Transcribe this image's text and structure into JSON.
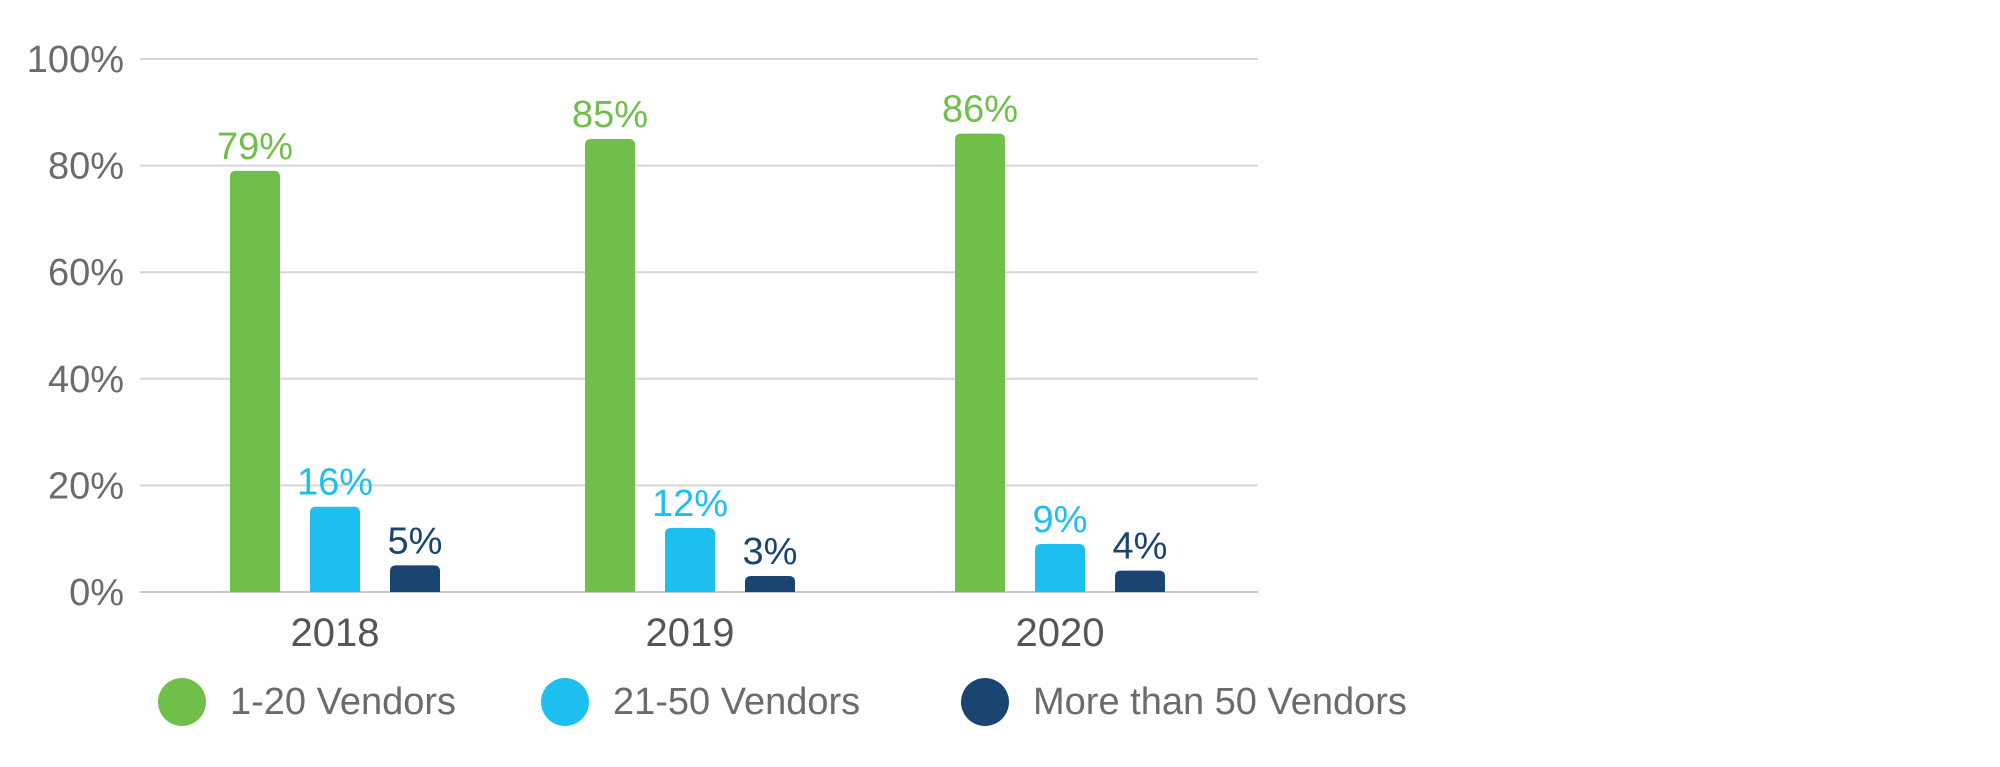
{
  "chart_data": {
    "type": "bar",
    "title": "",
    "xlabel": "",
    "ylabel": "",
    "ylim": [
      0,
      100
    ],
    "yticks": [
      "0%",
      "20%",
      "40%",
      "60%",
      "80%",
      "100%"
    ],
    "grid": true,
    "legend_position": "bottom",
    "categories": [
      "2018",
      "2019",
      "2020"
    ],
    "series": [
      {
        "name": "1-20 Vendors",
        "color": "#70bf4a",
        "values": [
          79,
          85,
          86
        ],
        "labels": [
          "79%",
          "85%",
          "86%"
        ]
      },
      {
        "name": "21-50 Vendors",
        "color": "#1dbfee",
        "values": [
          16,
          12,
          9
        ],
        "labels": [
          "16%",
          "12%",
          "9%"
        ]
      },
      {
        "name": "More than 50 Vendors",
        "color": "#1a4472",
        "values": [
          5,
          3,
          4
        ],
        "labels": [
          "5%",
          "3%",
          "4%"
        ]
      }
    ]
  }
}
